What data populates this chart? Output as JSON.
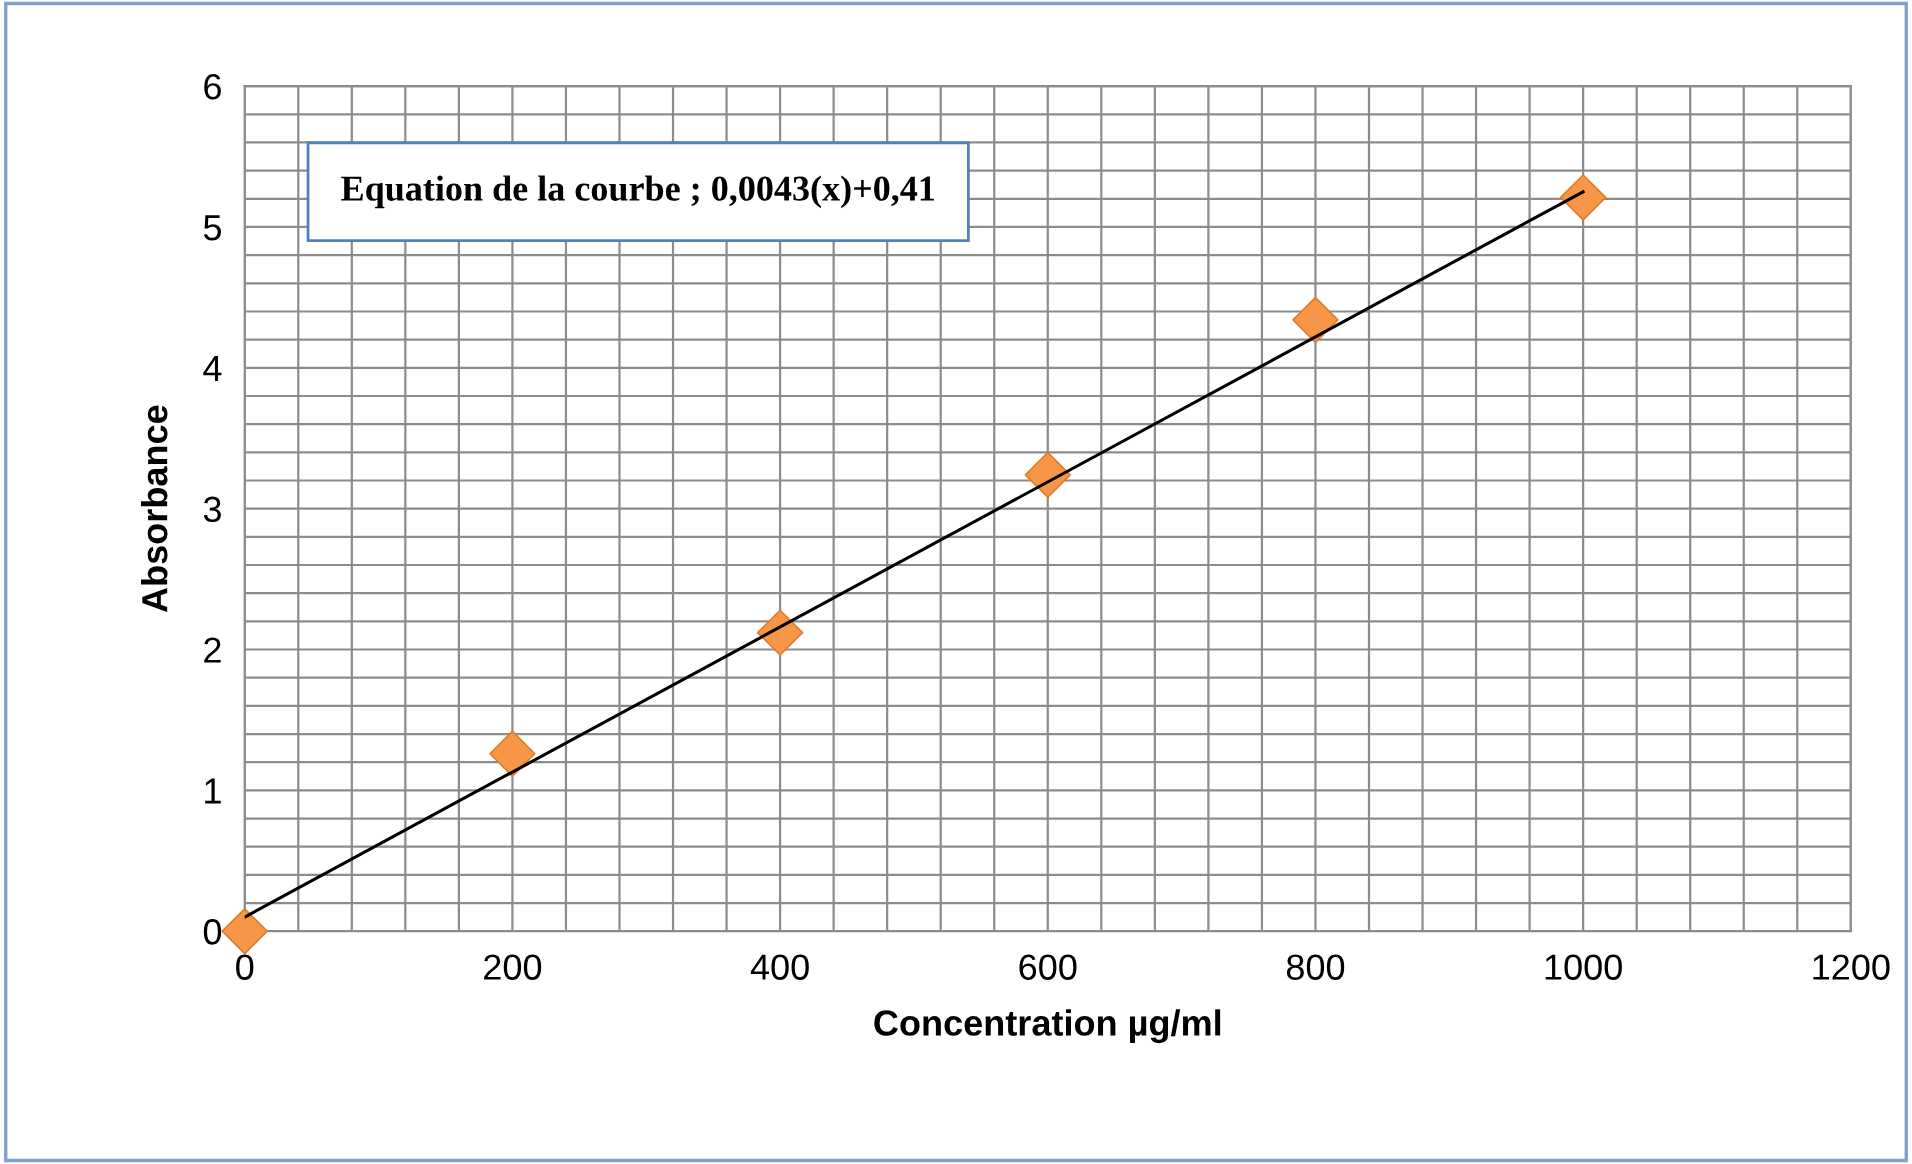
{
  "chart_data": {
    "type": "scatter",
    "xlabel": "Concentration µg/ml",
    "ylabel": "Absorbance",
    "annotations": [
      "Equation de la courbe ; 0,0043(x)+0,41"
    ],
    "series": [
      {
        "color": "#f79646",
        "marker": "diamond",
        "x": [
          0,
          200,
          400,
          600,
          800,
          1000
        ],
        "values": [
          0,
          1.26,
          2.12,
          3.24,
          4.34,
          5.21
        ]
      },
      {
        "type": "line",
        "color": "#000000",
        "marker": "none",
        "x": [
          0,
          1000
        ],
        "values": [
          0.1,
          5.25
        ]
      }
    ],
    "xlim": [
      0,
      1200
    ],
    "ylim": [
      0,
      6
    ],
    "xticks": [
      0,
      {
        "value": 40,
        "label": null
      },
      {
        "value": 80,
        "label": null
      },
      {
        "value": 120,
        "label": null
      },
      {
        "value": 160,
        "label": null
      },
      200,
      {
        "value": 240,
        "label": null
      },
      {
        "value": 280,
        "label": null
      },
      {
        "value": 320,
        "label": null
      },
      {
        "value": 360,
        "label": null
      },
      400,
      {
        "value": 440,
        "label": null
      },
      {
        "value": 480,
        "label": null
      },
      {
        "value": 520,
        "label": null
      },
      {
        "value": 560,
        "label": null
      },
      600,
      {
        "value": 640,
        "label": null
      },
      {
        "value": 680,
        "label": null
      },
      {
        "value": 720,
        "label": null
      },
      {
        "value": 760,
        "label": null
      },
      800,
      {
        "value": 840,
        "label": null
      },
      {
        "value": 880,
        "label": null
      },
      {
        "value": 920,
        "label": null
      },
      {
        "value": 960,
        "label": null
      },
      1000,
      {
        "value": 1040,
        "label": null
      },
      {
        "value": 1080,
        "label": null
      },
      {
        "value": 1120,
        "label": null
      },
      {
        "value": 1160,
        "label": null
      },
      1200
    ],
    "yticks": [
      0,
      {
        "value": 0.2,
        "label": null
      },
      {
        "value": 0.4,
        "label": null
      },
      {
        "value": 0.6,
        "label": null
      },
      {
        "value": 0.8,
        "label": null
      },
      1,
      {
        "value": 1.2,
        "label": null
      },
      {
        "value": 1.4,
        "label": null
      },
      {
        "value": 1.6,
        "label": null
      },
      {
        "value": 1.8,
        "label": null
      },
      2,
      {
        "value": 2.2,
        "label": null
      },
      {
        "value": 2.4,
        "label": null
      },
      {
        "value": 2.6,
        "label": null
      },
      {
        "value": 2.8,
        "label": null
      },
      3,
      {
        "value": 3.2,
        "label": null
      },
      {
        "value": 3.4,
        "label": null
      },
      {
        "value": 3.6,
        "label": null
      },
      {
        "value": 3.8,
        "label": null
      },
      4,
      {
        "value": 4.2,
        "label": null
      },
      {
        "value": 4.4,
        "label": null
      },
      {
        "value": 4.6,
        "label": null
      },
      {
        "value": 4.8,
        "label": null
      },
      5,
      {
        "value": 5.2,
        "label": null
      },
      {
        "value": 5.4,
        "label": null
      },
      {
        "value": 5.6,
        "label": null
      },
      {
        "value": 5.8,
        "label": null
      },
      6
    ],
    "grid": true,
    "legend": false
  }
}
